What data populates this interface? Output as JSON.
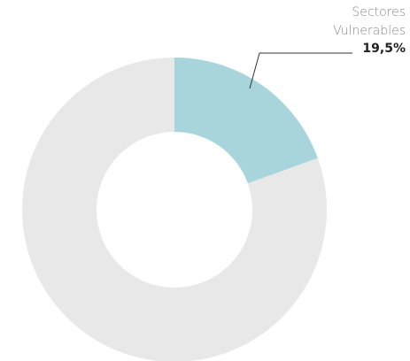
{
  "chart_data": {
    "type": "donut",
    "categories": [
      "Sectores Vulnerables",
      null
    ],
    "values": [
      19.5,
      80.5
    ],
    "value_labels": [
      "19,5%",
      null
    ],
    "colors": [
      "#a8d5dc",
      "#e8e8e8"
    ]
  }
}
